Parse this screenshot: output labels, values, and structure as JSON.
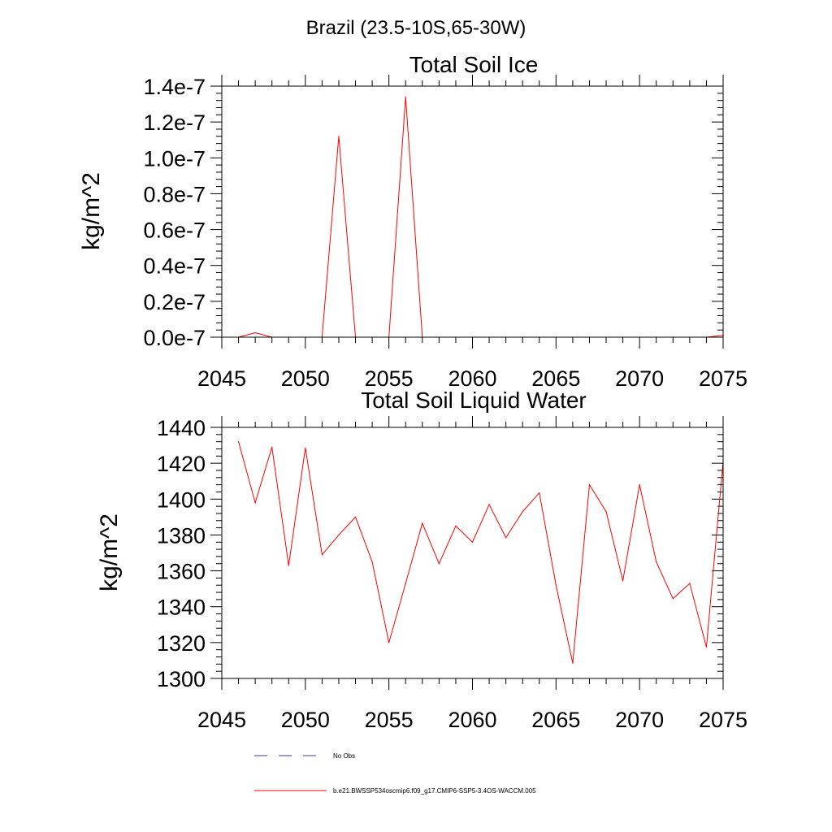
{
  "suptitle": "Brazil (23.5-10S,65-30W)",
  "chart_data": [
    {
      "type": "line",
      "title": "Total Soil Ice",
      "ylabel": "kg/m^2",
      "xlabel": "",
      "xlim": [
        2045,
        2075
      ],
      "ylim": [
        0,
        1.4e-07
      ],
      "xticks": [
        2045,
        2050,
        2055,
        2060,
        2065,
        2070,
        2075
      ],
      "xtick_labels": [
        "2045",
        "2050",
        "2055",
        "2060",
        "2065",
        "2070",
        "2075"
      ],
      "yticks": [
        0,
        2e-08,
        4e-08,
        6e-08,
        8e-08,
        1e-07,
        1.2e-07,
        1.4e-07
      ],
      "ytick_labels": [
        "0.0e-7",
        "0.2e-7",
        "0.4e-7",
        "0.6e-7",
        "0.8e-7",
        "1.0e-7",
        "1.2e-7",
        "1.4e-7"
      ],
      "series": [
        {
          "name": "b.e21.BWSSP534oscmip6.f09_g17.CMIP6-SSP5-3.4OS-WACCM.005",
          "color": "#ff0000",
          "x": [
            2046,
            2047,
            2048,
            2049,
            2050,
            2051,
            2052,
            2053,
            2054,
            2055,
            2056,
            2057,
            2058,
            2059,
            2060,
            2061,
            2062,
            2063,
            2064,
            2065,
            2066,
            2067,
            2068,
            2069,
            2070,
            2071,
            2072,
            2073,
            2074,
            2075
          ],
          "values": [
            0,
            2.5e-09,
            0,
            0,
            0,
            0,
            1.12e-07,
            0,
            0,
            0,
            1.34e-07,
            0,
            0,
            0,
            0,
            0,
            0,
            0,
            0,
            0,
            0,
            0,
            0,
            0,
            0,
            0,
            0,
            0,
            0,
            1e-09
          ]
        }
      ]
    },
    {
      "type": "line",
      "title": "Total Soil Liquid Water",
      "ylabel": "kg/m^2",
      "xlabel": "",
      "xlim": [
        2045,
        2075
      ],
      "ylim": [
        1300,
        1440
      ],
      "xticks": [
        2045,
        2050,
        2055,
        2060,
        2065,
        2070,
        2075
      ],
      "xtick_labels": [
        "2045",
        "2050",
        "2055",
        "2060",
        "2065",
        "2070",
        "2075"
      ],
      "yticks": [
        1300,
        1320,
        1340,
        1360,
        1380,
        1400,
        1420,
        1440
      ],
      "ytick_labels": [
        "1300",
        "1320",
        "1340",
        "1360",
        "1380",
        "1400",
        "1420",
        "1440"
      ],
      "series": [
        {
          "name": "b.e21.BWSSP534oscmip6.f09_g17.CMIP6-SSP5-3.4OS-WACCM.005",
          "color": "#ff0000",
          "x": [
            2046,
            2047,
            2048,
            2049,
            2050,
            2051,
            2052,
            2053,
            2054,
            2055,
            2056,
            2057,
            2058,
            2059,
            2060,
            2061,
            2062,
            2063,
            2064,
            2065,
            2066,
            2067,
            2068,
            2069,
            2070,
            2071,
            2072,
            2073,
            2074,
            2075
          ],
          "values": [
            1432,
            1398,
            1429,
            1363,
            1428.5,
            1369,
            1380,
            1390,
            1365,
            1320,
            1353,
            1386.5,
            1364,
            1385,
            1376,
            1397,
            1378.5,
            1393,
            1403.5,
            1352,
            1308.5,
            1408,
            1393,
            1354.5,
            1408,
            1365,
            1344.5,
            1353,
            1317.5,
            1421
          ]
        }
      ]
    }
  ],
  "legend": [
    {
      "label": "No Obs",
      "color": "#3b3b8f",
      "style": "dashed"
    },
    {
      "label": "b.e21.BWSSP534oscmip6.f09_g17.CMIP6-SSP5-3.4OS-WACCM.005",
      "color": "#ff0000",
      "style": "solid"
    }
  ]
}
